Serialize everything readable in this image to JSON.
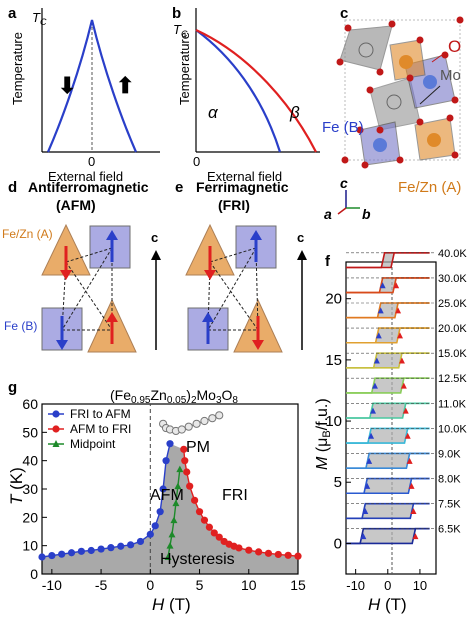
{
  "panels": {
    "a": {
      "label": "a",
      "tc": "T",
      "tc_sub": "C",
      "ylabel": "Temperature",
      "xlabel": "External field",
      "zero": "0"
    },
    "b": {
      "label": "b",
      "tc": "T",
      "tc_sub": "C",
      "ylabel": "Temperature",
      "xlabel": "External field",
      "zero": "0",
      "alpha": "α",
      "beta": "β"
    },
    "c": {
      "label": "c",
      "o_label": "O",
      "mo_label": "Mo",
      "feb_label": "Fe (B)",
      "fezna_label": "Fe/Zn (A)",
      "axis_c": "c",
      "axis_a": "a",
      "axis_b": "b"
    },
    "d": {
      "label": "d",
      "title1": "Antiferromagnetic",
      "title2": "(AFM)",
      "fezna_label": "Fe/Zn (A)",
      "feb_label": "Fe (B)",
      "c_label": "c"
    },
    "e": {
      "label": "e",
      "title1": "Ferrimagnetic",
      "title2": "(FRI)",
      "c_label": "c"
    },
    "f": {
      "label": "f",
      "ylabel_pre": "M",
      "ylabel_post": " (μ",
      "ylabel_sub": "B",
      "ylabel_end": "/f.u.)",
      "xlabel": "H (T)",
      "yticks": [
        "0",
        "5",
        "10",
        "15",
        "20"
      ],
      "xticks": [
        "-10",
        "0",
        "10"
      ],
      "temps": [
        "40.0K",
        "30.0K",
        "25.0K",
        "20.0K",
        "15.0K",
        "12.5K",
        "11.0K",
        "10.0K",
        "9.0K",
        "8.0K",
        "7.5K",
        "6.5K"
      ]
    },
    "g": {
      "label": "g",
      "title": "(Fe0.95Zn0.05)2Mo3O8",
      "pm": "PM",
      "afm": "AFM",
      "fri": "FRI",
      "hysteresis": "Hysteresis"
    }
  },
  "colors": {
    "blue": "#2a3fc9",
    "red": "#e02020",
    "green": "#1d8a2a",
    "orange": "#e08a2a",
    "gray": "#9a9a9a"
  },
  "chart_data": [
    {
      "type": "line",
      "title": "",
      "xlabel": "H (T)",
      "ylabel": "T (K)",
      "xlim": [
        -11,
        15
      ],
      "ylim": [
        0,
        60
      ],
      "series": [
        {
          "name": "FRI to AFM",
          "x": [
            -11,
            -10,
            -9,
            -8,
            -7,
            -6,
            -5,
            -4,
            -3,
            -2,
            -1,
            0,
            0.5,
            1,
            1.3,
            1.6,
            2.0
          ],
          "y": [
            6,
            6.5,
            7,
            7.5,
            8,
            8.3,
            8.8,
            9.3,
            9.8,
            10.3,
            11.5,
            14,
            17,
            22,
            30,
            40,
            46
          ]
        },
        {
          "name": "AFM to FRI",
          "x": [
            3.4,
            3.5,
            3.7,
            4.0,
            4.5,
            5.0,
            5.5,
            6.0,
            6.5,
            7.0,
            7.5,
            8.0,
            8.5,
            9.0,
            10.0,
            11.0,
            12.0,
            13.0,
            14.0,
            15.0
          ],
          "y": [
            44,
            40,
            36,
            31,
            26,
            22,
            19,
            16.5,
            14.5,
            13,
            11.5,
            10.5,
            9.8,
            9.2,
            8.4,
            7.8,
            7.3,
            6.9,
            6.6,
            6.3
          ]
        },
        {
          "name": "Midpoint",
          "x": [
            1.8,
            2.0,
            2.2,
            2.4,
            2.6,
            2.8,
            3.0
          ],
          "y": [
            6,
            10,
            14,
            19,
            25,
            31,
            37
          ]
        },
        {
          "name": "",
          "x": [
            1.3,
            1.6,
            2.0,
            2.6,
            3.2,
            3.9,
            4.7,
            5.5,
            6.3,
            7.0
          ],
          "y": [
            53,
            51.5,
            51,
            50.5,
            51,
            52,
            53,
            54,
            55,
            56
          ]
        }
      ],
      "annotations": [
        "PM",
        "AFM",
        "FRI",
        "Hysteresis"
      ],
      "xticks": [
        "-10",
        "-5",
        "0",
        "5",
        "10",
        "15"
      ],
      "yticks": [
        "0",
        "10",
        "20",
        "30",
        "40",
        "50",
        "60"
      ],
      "legend": "top-left"
    }
  ]
}
